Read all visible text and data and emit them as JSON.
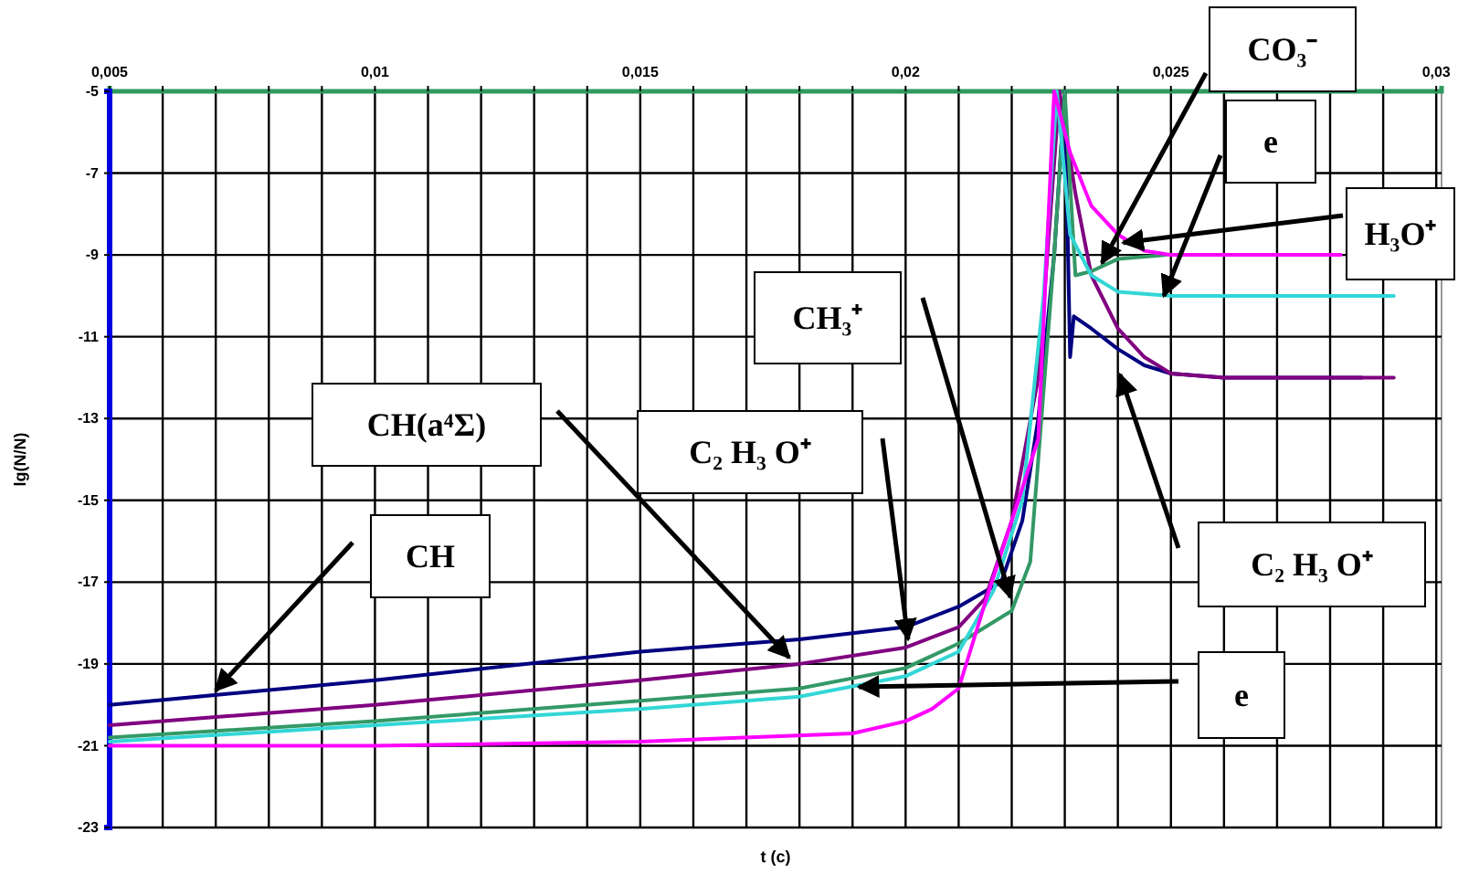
{
  "chart_data": {
    "type": "line",
    "xlabel": "t (c)",
    "ylabel": "lg(N/N)",
    "xlim": [
      0.005,
      0.0301
    ],
    "xticks": [
      {
        "value": 0.005,
        "label": "0,005"
      },
      {
        "value": 0.006,
        "label": null
      },
      {
        "value": 0.007,
        "label": null
      },
      {
        "value": 0.008,
        "label": null
      },
      {
        "value": 0.009,
        "label": null
      },
      {
        "value": 0.01,
        "label": "0,01"
      },
      {
        "value": 0.011,
        "label": null
      },
      {
        "value": 0.012,
        "label": null
      },
      {
        "value": 0.013,
        "label": null
      },
      {
        "value": 0.014,
        "label": null
      },
      {
        "value": 0.015,
        "label": "0,015"
      },
      {
        "value": 0.016,
        "label": null
      },
      {
        "value": 0.017,
        "label": null
      },
      {
        "value": 0.018,
        "label": null
      },
      {
        "value": 0.019,
        "label": null
      },
      {
        "value": 0.02,
        "label": "0,02"
      },
      {
        "value": 0.021,
        "label": null
      },
      {
        "value": 0.022,
        "label": null
      },
      {
        "value": 0.023,
        "label": null
      },
      {
        "value": 0.024,
        "label": null
      },
      {
        "value": 0.025,
        "label": "0,025"
      },
      {
        "value": 0.026,
        "label": null
      },
      {
        "value": 0.027,
        "label": null
      },
      {
        "value": 0.028,
        "label": null
      },
      {
        "value": 0.029,
        "label": null
      },
      {
        "value": 0.03,
        "label": "0,03"
      }
    ],
    "ylim": [
      -23,
      -5
    ],
    "yticks": [
      -5,
      -7,
      -9,
      -11,
      -13,
      -15,
      -17,
      -19,
      -21,
      -23
    ],
    "grid": true,
    "marker": "none",
    "line_style": "solid",
    "series": [
      {
        "color": "#000080",
        "x": [
          0.005,
          0.01,
          0.015,
          0.018,
          0.02,
          0.021,
          0.0218,
          0.0222,
          0.0225,
          0.0228,
          0.023,
          0.0231,
          0.02317,
          0.0235,
          0.024,
          0.0245,
          0.025,
          0.026,
          0.0286
        ],
        "values": [
          -20,
          -19.4,
          -18.7,
          -18.4,
          -18.1,
          -17.6,
          -17,
          -15.5,
          -13,
          -9,
          -5,
          -11.5,
          -10.5,
          -10.8,
          -11.3,
          -11.7,
          -11.9,
          -12,
          -12
        ]
      },
      {
        "color": "#800080",
        "x": [
          0.005,
          0.01,
          0.015,
          0.018,
          0.02,
          0.021,
          0.0215,
          0.022,
          0.0225,
          0.0229,
          0.0232,
          0.0235,
          0.024,
          0.0245,
          0.025,
          0.026,
          0.0292
        ],
        "values": [
          -20.5,
          -20,
          -19.4,
          -19,
          -18.6,
          -18.1,
          -17.4,
          -15.5,
          -12,
          -5,
          -7.5,
          -9.5,
          -10.8,
          -11.5,
          -11.9,
          -12,
          -12
        ]
      },
      {
        "color": "#339966",
        "x": [
          0.005,
          0.01,
          0.015,
          0.018,
          0.02,
          0.021,
          0.022,
          0.02235,
          0.0225,
          0.0228,
          0.023,
          0.0232,
          0.0235,
          0.024,
          0.0249
        ],
        "values": [
          -20.8,
          -20.4,
          -19.9,
          -19.6,
          -19.1,
          -18.5,
          -17.7,
          -16.5,
          -14,
          -9,
          -5,
          -9.5,
          -9.4,
          -9.1,
          -9
        ]
      },
      {
        "color": "#33d6d6",
        "x": [
          0.005,
          0.01,
          0.015,
          0.018,
          0.02,
          0.021,
          0.02166,
          0.0222,
          0.0226,
          0.02285,
          0.0231,
          0.0235,
          0.024,
          0.025,
          0.0292
        ],
        "values": [
          -20.9,
          -20.5,
          -20.1,
          -19.8,
          -19.3,
          -18.7,
          -17.2,
          -15,
          -10,
          -5,
          -8.5,
          -9.5,
          -9.9,
          -10,
          -10
        ]
      },
      {
        "color": "#ff00ff",
        "x": [
          0.005,
          0.01,
          0.015,
          0.019,
          0.02,
          0.0205,
          0.021,
          0.0215,
          0.022,
          0.0225,
          0.0228,
          0.0231,
          0.0235,
          0.024,
          0.0245,
          0.025,
          0.0282
        ],
        "values": [
          -21,
          -21,
          -20.9,
          -20.7,
          -20.4,
          -20.1,
          -19.6,
          -17.5,
          -15.5,
          -13.5,
          -5,
          -6.5,
          -7.8,
          -8.5,
          -8.9,
          -9,
          -9
        ]
      }
    ],
    "annotations": [
      "CH",
      "CH(a⁴Σ)",
      "C₂ H₃ O⁺",
      "CH₃⁺",
      {
        "text": "CO₃⁻",
        "x": 0.0237,
        "y": -9.2
      },
      "e",
      {
        "text": "H₃O⁺",
        "x": 0.0241,
        "y": -8.7
      },
      "C₂ H₃ O⁺",
      "e"
    ]
  }
}
